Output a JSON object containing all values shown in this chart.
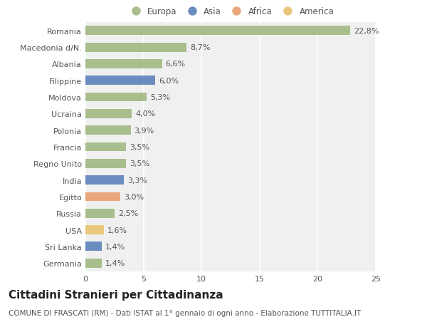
{
  "countries": [
    "Romania",
    "Macedonia d/N.",
    "Albania",
    "Filippine",
    "Moldova",
    "Ucraina",
    "Polonia",
    "Francia",
    "Regno Unito",
    "India",
    "Egitto",
    "Russia",
    "USA",
    "Sri Lanka",
    "Germania"
  ],
  "values": [
    22.8,
    8.7,
    6.6,
    6.0,
    5.3,
    4.0,
    3.9,
    3.5,
    3.5,
    3.3,
    3.0,
    2.5,
    1.6,
    1.4,
    1.4
  ],
  "labels": [
    "22,8%",
    "8,7%",
    "6,6%",
    "6,0%",
    "5,3%",
    "4,0%",
    "3,9%",
    "3,5%",
    "3,5%",
    "3,3%",
    "3,0%",
    "2,5%",
    "1,6%",
    "1,4%",
    "1,4%"
  ],
  "continents": [
    "Europa",
    "Europa",
    "Europa",
    "Asia",
    "Europa",
    "Europa",
    "Europa",
    "Europa",
    "Europa",
    "Asia",
    "Africa",
    "Europa",
    "America",
    "Asia",
    "Europa"
  ],
  "colors": {
    "Europa": "#a8be8c",
    "Asia": "#6b8cbf",
    "Africa": "#e8a87c",
    "America": "#e8c87c"
  },
  "legend_items": [
    "Europa",
    "Asia",
    "Africa",
    "America"
  ],
  "legend_colors": [
    "#a8be8c",
    "#6b8cbf",
    "#e8a87c",
    "#e8c87c"
  ],
  "xlim": [
    0,
    25
  ],
  "xticks": [
    0,
    5,
    10,
    15,
    20,
    25
  ],
  "bg_color": "#ffffff",
  "plot_bg_color": "#f0f0f0",
  "grid_color": "#ffffff",
  "title": "Cittadini Stranieri per Cittadinanza",
  "subtitle": "COMUNE DI FRASCATI (RM) - Dati ISTAT al 1° gennaio di ogni anno - Elaborazione TUTTITALIA.IT",
  "bar_height": 0.55,
  "label_fontsize": 8.0,
  "tick_fontsize": 8.0,
  "title_fontsize": 11,
  "subtitle_fontsize": 7.5
}
